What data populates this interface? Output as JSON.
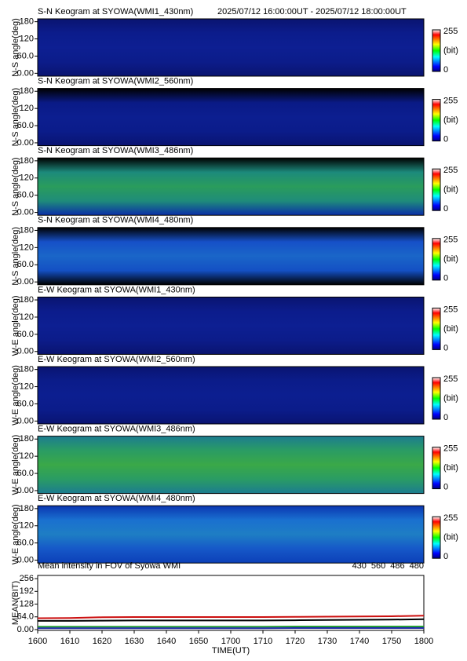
{
  "chart_data": [
    {
      "type": "heatmap",
      "title": "S-N Keogram at SYOWA(WMI1_430nm)",
      "subtitle": "2025/07/12 16:00:00UT - 2025/07/12 18:00:00UT",
      "ylabel": "N-S angle(deg)",
      "ylim": [
        -10,
        190
      ],
      "yticks": [
        {
          "value": 0,
          "label": "0.00"
        },
        {
          "value": 60,
          "label": "60.0"
        },
        120,
        180
      ],
      "colors": [
        "#0a1470",
        "#0c1c8c",
        "#0d1f92",
        "#0c1c8a",
        "#0a1470"
      ],
      "clim": [
        0,
        255
      ],
      "clabel": "(bit)"
    },
    {
      "type": "heatmap",
      "title": "S-N Keogram at SYOWA(WMI2_560nm)",
      "ylabel": "N-S angle(deg)",
      "ylim": [
        -10,
        190
      ],
      "yticks": [
        {
          "value": 0,
          "label": "0.00"
        },
        {
          "value": 60,
          "label": "60.0"
        },
        120,
        180
      ],
      "colors": [
        "#000000",
        "#0a1a86",
        "#0c1e90",
        "#0b1c8a",
        "#0a1472"
      ],
      "clim": [
        0,
        255
      ],
      "clabel": "(bit)"
    },
    {
      "type": "heatmap",
      "title": "S-N Keogram at SYOWA(WMI3_486nm)",
      "ylabel": "N-S angle(deg)",
      "ylim": [
        -10,
        190
      ],
      "yticks": [
        {
          "value": 0,
          "label": "0.00"
        },
        {
          "value": 60,
          "label": "60.0"
        },
        120,
        180
      ],
      "colors": [
        "#000000",
        "#1c8a7c",
        "#2a9c5c",
        "#1f8c7a",
        "#0a2ea8"
      ],
      "clim": [
        0,
        255
      ],
      "clabel": "(bit)"
    },
    {
      "type": "heatmap",
      "title": "S-N Keogram at SYOWA(WMI4_480nm)",
      "ylabel": "N-S angle(deg)",
      "ylim": [
        -10,
        190
      ],
      "yticks": [
        {
          "value": 0,
          "label": "0.00"
        },
        {
          "value": 60,
          "label": "60.0"
        },
        120,
        180
      ],
      "colors": [
        "#000000",
        "#1650c8",
        "#1a66c8",
        "#1450c4",
        "#000000"
      ],
      "clim": [
        0,
        255
      ],
      "clabel": "(bit)"
    },
    {
      "type": "heatmap",
      "title": "E-W Keogram at SYOWA(WMI1_430nm)",
      "ylabel": "W-E angle(deg)",
      "ylim": [
        -10,
        190
      ],
      "yticks": [
        {
          "value": 0,
          "label": "0.00"
        },
        {
          "value": 60,
          "label": "60.0"
        },
        120,
        180
      ],
      "colors": [
        "#0a1470",
        "#0c1c8c",
        "#0d1f92",
        "#0c1c8a",
        "#0a1470"
      ],
      "clim": [
        0,
        255
      ],
      "clabel": "(bit)"
    },
    {
      "type": "heatmap",
      "title": "E-W Keogram at SYOWA(WMI2_560nm)",
      "ylabel": "W-E angle(deg)",
      "ylim": [
        -10,
        190
      ],
      "yticks": [
        {
          "value": 0,
          "label": "0.00"
        },
        {
          "value": 60,
          "label": "60.0"
        },
        120,
        180
      ],
      "colors": [
        "#0a1472",
        "#0b1c8a",
        "#0c1e90",
        "#0b1c8a",
        "#0a1472"
      ],
      "clim": [
        0,
        255
      ],
      "clabel": "(bit)"
    },
    {
      "type": "heatmap",
      "title": "E-W Keogram at SYOWA(WMI3_486nm)",
      "ylabel": "W-E angle(deg)",
      "ylim": [
        -10,
        190
      ],
      "yticks": [
        {
          "value": 0,
          "label": "0.00"
        },
        {
          "value": 60,
          "label": "60.0"
        },
        120,
        180
      ],
      "colors": [
        "#1c7c90",
        "#2a9c64",
        "#3aa848",
        "#2a9c64",
        "#1c7c90"
      ],
      "clim": [
        0,
        255
      ],
      "clabel": "(bit)"
    },
    {
      "type": "heatmap",
      "title": "E-W Keogram at SYOWA(WMI4_480nm)",
      "ylabel": "W-E angle(deg)",
      "ylim": [
        -10,
        190
      ],
      "yticks": [
        {
          "value": 0,
          "label": "0.00"
        },
        {
          "value": 60,
          "label": "60.0"
        },
        120,
        180
      ],
      "colors": [
        "#0a36b0",
        "#1a70d0",
        "#1e7ec4",
        "#1658c8",
        "#0c40b8"
      ],
      "clim": [
        0,
        255
      ],
      "clabel": "(bit)"
    },
    {
      "type": "line",
      "title": "Mean intensity in FOV of Syowa WMI",
      "xlabel": "TIME(UT)",
      "ylabel": "MEAN(BIT)",
      "categories": [
        "1600",
        "1610",
        "1620",
        "1630",
        "1640",
        "1650",
        "1700",
        "1710",
        "1720",
        "1730",
        "1740",
        "1750",
        "1800"
      ],
      "ylim": [
        -4,
        272
      ],
      "yticks": [
        {
          "value": 0,
          "label": "0.00"
        },
        {
          "value": 64,
          "label": "64.0"
        },
        128,
        192,
        256
      ],
      "series": [
        {
          "name": "430",
          "color": "#1f2aa8",
          "values": [
            7,
            7,
            7,
            7,
            7,
            7,
            7,
            7,
            8,
            8,
            8,
            8,
            8
          ]
        },
        {
          "name": "560",
          "color": "#1a9a2a",
          "values": [
            14,
            14,
            14,
            14,
            14,
            14,
            14,
            14,
            15,
            15,
            15,
            15,
            15
          ]
        },
        {
          "name": "486",
          "color": "#cc1010",
          "values": [
            57,
            58,
            62,
            63,
            63,
            63,
            63,
            63,
            64,
            65,
            66,
            67,
            70
          ]
        },
        {
          "name": "480",
          "color": "#000000",
          "values": [
            44,
            44,
            45,
            46,
            46,
            46,
            46,
            46,
            47,
            48,
            49,
            50,
            52
          ]
        }
      ]
    }
  ]
}
